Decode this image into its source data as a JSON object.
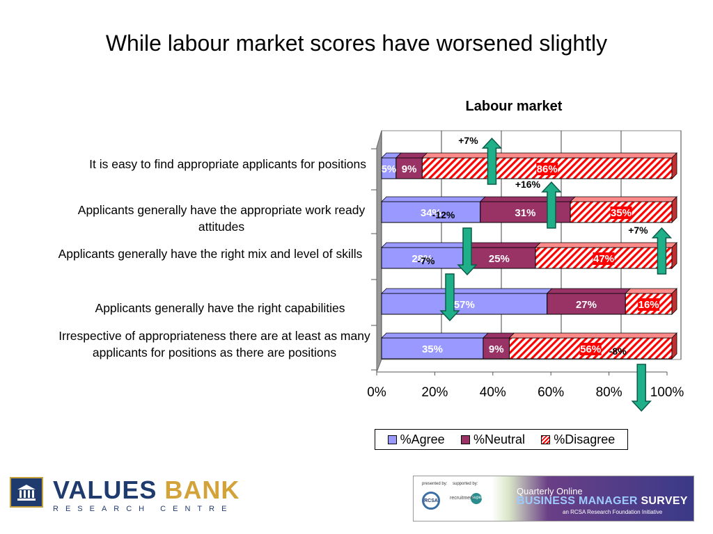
{
  "slide": {
    "title": "While labour market scores have worsened slightly"
  },
  "chart_data": {
    "type": "bar",
    "orientation": "horizontal-stacked-100",
    "title": "Labour market",
    "categories": [
      "It is easy to find appropriate applicants for positions",
      "Applicants generally have the appropriate work ready attitudes",
      "Applicants generally have the right mix and level of skills",
      "Applicants generally have the right capabilities",
      "Irrespective of appropriateness there are at least as many applicants for positions as there are positions"
    ],
    "series": [
      {
        "name": "%Agree",
        "color": "#9999ff",
        "values": [
          5,
          34,
          28,
          57,
          35
        ],
        "labels": [
          "5%",
          "34%",
          "28%",
          "57%",
          "35%"
        ]
      },
      {
        "name": "%Neutral",
        "color": "#993366",
        "values": [
          9,
          31,
          25,
          27,
          9
        ],
        "labels": [
          "9%",
          "31%",
          "25%",
          "27%",
          "9%"
        ]
      },
      {
        "name": "%Disagree",
        "color": "#ff0000",
        "pattern": "diagonal-stripes",
        "values": [
          86,
          35,
          47,
          16,
          56
        ],
        "labels": [
          "86%",
          "35%",
          "47%",
          "16%",
          "56%"
        ]
      }
    ],
    "xlim": [
      0,
      100
    ],
    "x_ticks": [
      "0%",
      "20%",
      "40%",
      "60%",
      "80%",
      "100%"
    ],
    "grid": true,
    "legend_position": "bottom",
    "annotations": [
      {
        "text": "+7%",
        "direction": "up",
        "row": 0,
        "at": 38
      },
      {
        "text": "-12%",
        "direction": "down",
        "row": 1,
        "at": 29.5
      },
      {
        "text": "+16%",
        "direction": "up",
        "row": 1,
        "at": 58.5
      },
      {
        "text": "-7%",
        "direction": "down",
        "row": 2,
        "at": 23.5
      },
      {
        "text": "+7%",
        "direction": "up",
        "row": 2,
        "at": 96.5
      },
      {
        "text": "-8%",
        "direction": "down",
        "row": 4,
        "at": 89.5
      }
    ]
  },
  "footer": {
    "org_name_1": "VALUES",
    "org_name_2": "BANK",
    "org_sub": "RESEARCH CENTRE",
    "banner_presented": "presented by:",
    "banner_supported": "supported by:",
    "banner_rcsa": "RCSA",
    "banner_recruit": "recruitment",
    "banner_super": "super",
    "banner_line1": "Quarterly Online",
    "banner_line2a": "BUSINESS MANAGER",
    "banner_line2b": " SURVEY",
    "banner_line3": "an RCSA Research Foundation Initiative"
  }
}
